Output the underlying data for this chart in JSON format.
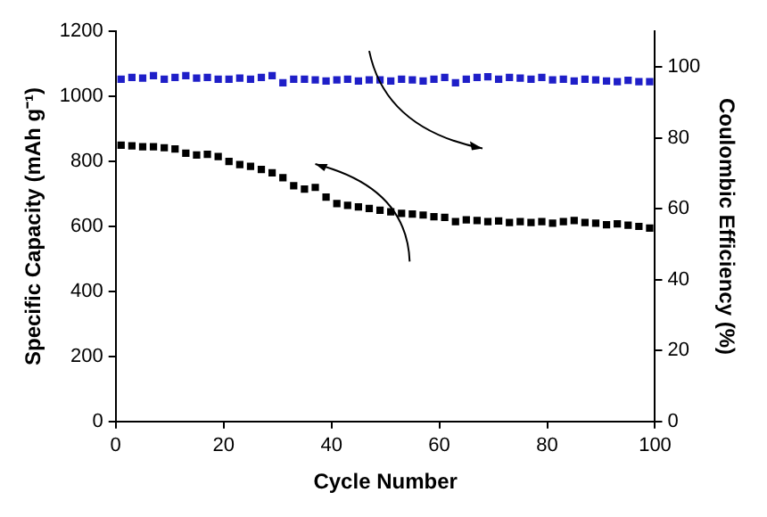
{
  "chart_data": {
    "type": "scatter",
    "xlabel": "Cycle Number",
    "ylabel": "Specific Capacity (mAh g⁻¹)",
    "y2label": "Coulombic Efficiency (%)",
    "xlim": [
      0,
      100
    ],
    "xticks": [
      0,
      20,
      40,
      60,
      80,
      100
    ],
    "ylim": [
      0,
      1200
    ],
    "yticks": [
      0,
      200,
      400,
      600,
      800,
      1000,
      1200
    ],
    "y2lim": [
      0,
      110
    ],
    "y2ticks": [
      0,
      20,
      40,
      60,
      80,
      100
    ],
    "grid": false,
    "legend": false,
    "marker": "square",
    "series": [
      {
        "color": "#000000",
        "x": [
          1,
          3,
          5,
          7,
          9,
          11,
          13,
          15,
          17,
          19,
          21,
          23,
          25,
          27,
          29,
          31,
          33,
          35,
          37,
          39,
          41,
          43,
          45,
          47,
          49,
          51,
          53,
          55,
          57,
          59,
          61,
          63,
          65,
          67,
          69,
          71,
          73,
          75,
          77,
          79,
          81,
          83,
          85,
          87,
          89,
          91,
          93,
          95,
          97,
          99
        ],
        "values": [
          850,
          848,
          845,
          845,
          842,
          838,
          825,
          820,
          822,
          815,
          800,
          790,
          785,
          775,
          765,
          750,
          725,
          715,
          720,
          690,
          670,
          665,
          660,
          655,
          650,
          645,
          640,
          638,
          635,
          630,
          628,
          615,
          620,
          618,
          615,
          617,
          612,
          615,
          612,
          615,
          610,
          615,
          618,
          612,
          610,
          605,
          608,
          604,
          600,
          595
        ]
      },
      {
        "color": "#1f1fc8",
        "axis": "y2",
        "x": [
          1,
          3,
          5,
          7,
          9,
          11,
          13,
          15,
          17,
          19,
          21,
          23,
          25,
          27,
          29,
          31,
          33,
          35,
          37,
          39,
          41,
          43,
          45,
          47,
          49,
          51,
          53,
          55,
          57,
          59,
          61,
          63,
          65,
          67,
          69,
          71,
          73,
          75,
          77,
          79,
          81,
          83,
          85,
          87,
          89,
          91,
          93,
          95,
          97,
          99
        ],
        "values": [
          96.5,
          97,
          96.8,
          97.5,
          96.5,
          97,
          97.5,
          96.8,
          97,
          96.5,
          96.5,
          96.8,
          96.5,
          97,
          97.5,
          95.5,
          96.5,
          96.5,
          96.3,
          96,
          96.3,
          96.5,
          96,
          96.3,
          96.3,
          96,
          96.5,
          96.3,
          96,
          96.5,
          97,
          95.5,
          96.5,
          97,
          97.2,
          96.5,
          97,
          96.8,
          96.5,
          97,
          96.3,
          96.5,
          96,
          96.5,
          96.3,
          96,
          95.8,
          96.2,
          95.8,
          95.8
        ]
      }
    ]
  }
}
